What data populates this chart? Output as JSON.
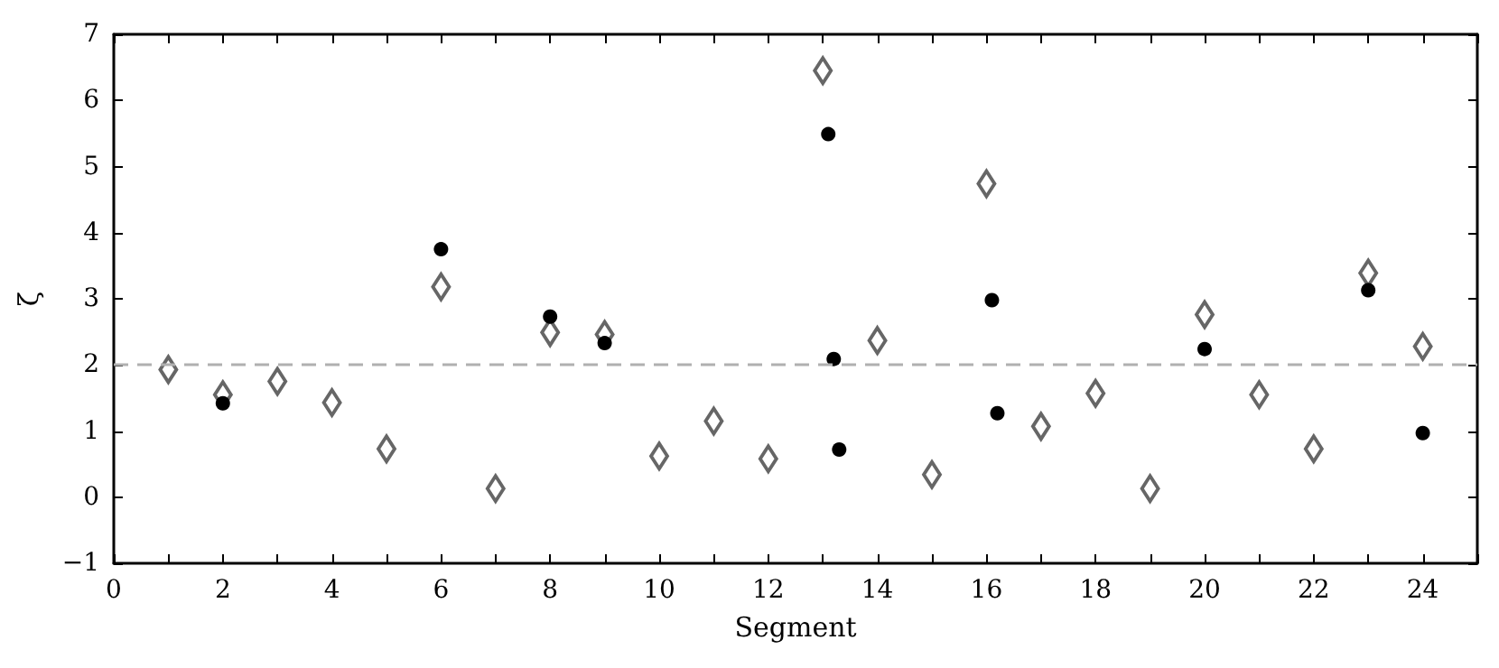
{
  "chart_data": {
    "type": "scatter",
    "xlabel": "Segment",
    "ylabel": "ζ",
    "xlim": [
      0,
      25
    ],
    "ylim": [
      -1,
      7
    ],
    "xticks": [
      0,
      {
        "value": 1,
        "label": null
      },
      2,
      {
        "value": 3,
        "label": null
      },
      4,
      {
        "value": 5,
        "label": null
      },
      6,
      {
        "value": 7,
        "label": null
      },
      8,
      {
        "value": 9,
        "label": null
      },
      10,
      {
        "value": 11,
        "label": null
      },
      12,
      {
        "value": 13,
        "label": null
      },
      14,
      {
        "value": 15,
        "label": null
      },
      16,
      {
        "value": 17,
        "label": null
      },
      18,
      {
        "value": 19,
        "label": null
      },
      20,
      {
        "value": 21,
        "label": null
      },
      22,
      {
        "value": 23,
        "label": null
      },
      24,
      {
        "value": 25,
        "label": null
      }
    ],
    "yticks": [
      -1,
      0,
      1,
      2,
      3,
      4,
      5,
      6,
      7
    ],
    "grid": false,
    "ref_lines": [
      {
        "axis": "y",
        "value": 2,
        "color": "#b0b0b0",
        "line_style": "dashed"
      }
    ],
    "series": [
      {
        "marker": "diamond",
        "color": "#666666",
        "x": [
          1,
          2,
          3,
          4,
          5,
          6,
          7,
          8,
          9,
          10,
          11,
          12,
          13,
          14,
          15,
          16,
          17,
          18,
          19,
          20,
          21,
          22,
          23,
          24
        ],
        "values": [
          1.93,
          1.55,
          1.75,
          1.43,
          0.73,
          3.18,
          0.13,
          2.49,
          2.46,
          0.62,
          1.15,
          0.58,
          6.45,
          2.37,
          0.34,
          4.74,
          1.07,
          1.57,
          0.13,
          2.76,
          1.55,
          0.73,
          3.39,
          2.28
        ]
      },
      {
        "marker": "circle",
        "color": "#000000",
        "x": [
          2,
          6,
          8,
          9,
          13.1,
          13.2,
          13.3,
          16.1,
          16.2,
          20,
          23,
          24
        ],
        "values": [
          1.42,
          3.75,
          2.73,
          2.33,
          5.49,
          2.09,
          0.72,
          2.98,
          1.27,
          2.24,
          3.13,
          0.97
        ]
      }
    ]
  }
}
